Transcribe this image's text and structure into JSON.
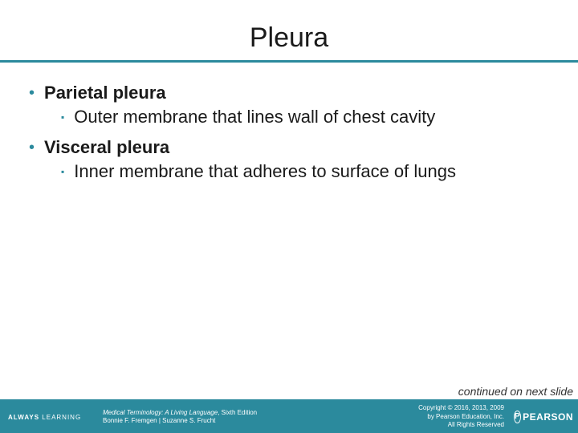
{
  "title": "Pleura",
  "colors": {
    "accent": "#2b8a9d",
    "text": "#1a1a1a",
    "footer_bg": "#2b8a9d",
    "footer_text": "#ffffff",
    "background": "#ffffff"
  },
  "bullets": [
    {
      "label": "Parietal pleura",
      "sub": "Outer membrane that lines wall of chest cavity"
    },
    {
      "label": "Visceral pleura",
      "sub": "Inner membrane that adheres to surface of lungs"
    }
  ],
  "continued_text": "continued on next slide",
  "footer": {
    "left_brand_1": "ALWAYS",
    "left_brand_2": "LEARNING",
    "book_title": "Medical Terminology: A Living Language",
    "edition": ", Sixth Edition",
    "authors": "Bonnie F. Fremgen | Suzanne S. Frucht",
    "copyright_line1": "Copyright © 2016, 2013, 2009",
    "copyright_line2": "by Pearson Education, Inc.",
    "copyright_line3": "All Rights Reserved",
    "logo_text": "PEARSON"
  }
}
